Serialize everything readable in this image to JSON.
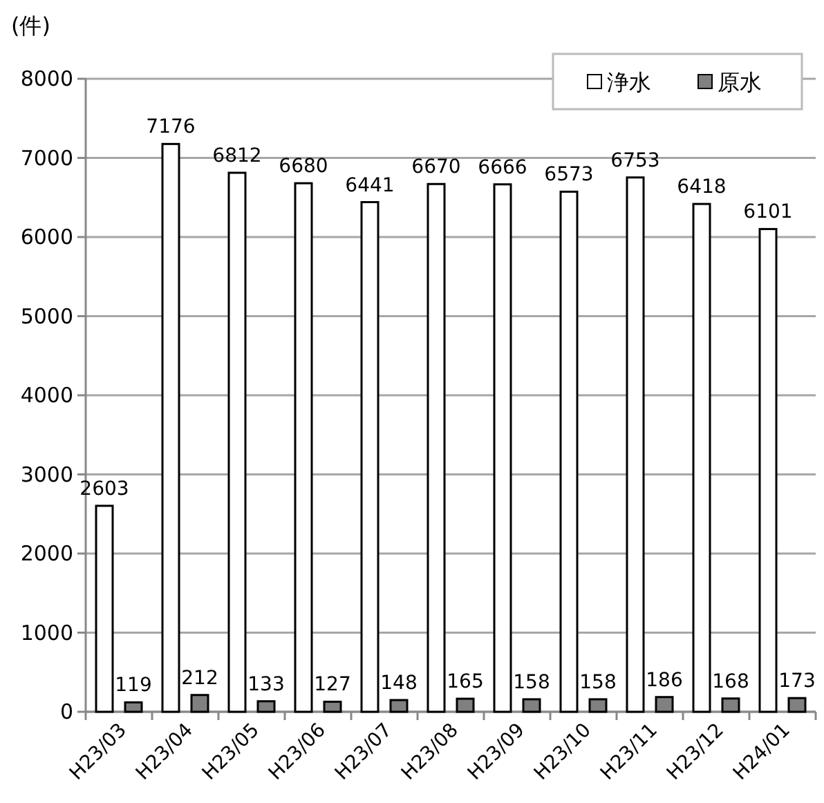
{
  "chart_data": {
    "type": "bar",
    "ylabel": "(件)",
    "categories": [
      "H23/03",
      "H23/04",
      "H23/05",
      "H23/06",
      "H23/07",
      "H23/08",
      "H23/09",
      "H23/10",
      "H23/11",
      "H23/12",
      "H24/01"
    ],
    "series": [
      {
        "name": "浄水",
        "color": "#ffffff",
        "values": [
          2603,
          7176,
          6812,
          6680,
          6441,
          6670,
          6666,
          6573,
          6753,
          6418,
          6101
        ]
      },
      {
        "name": "原水",
        "color": "#808080",
        "values": [
          119,
          212,
          133,
          127,
          148,
          165,
          158,
          158,
          186,
          168,
          173
        ]
      }
    ],
    "ylim": [
      0,
      8000
    ],
    "yticks": [
      0,
      1000,
      2000,
      3000,
      4000,
      5000,
      6000,
      7000,
      8000
    ],
    "grid": "y",
    "legend": "top right",
    "data_labels": true
  }
}
